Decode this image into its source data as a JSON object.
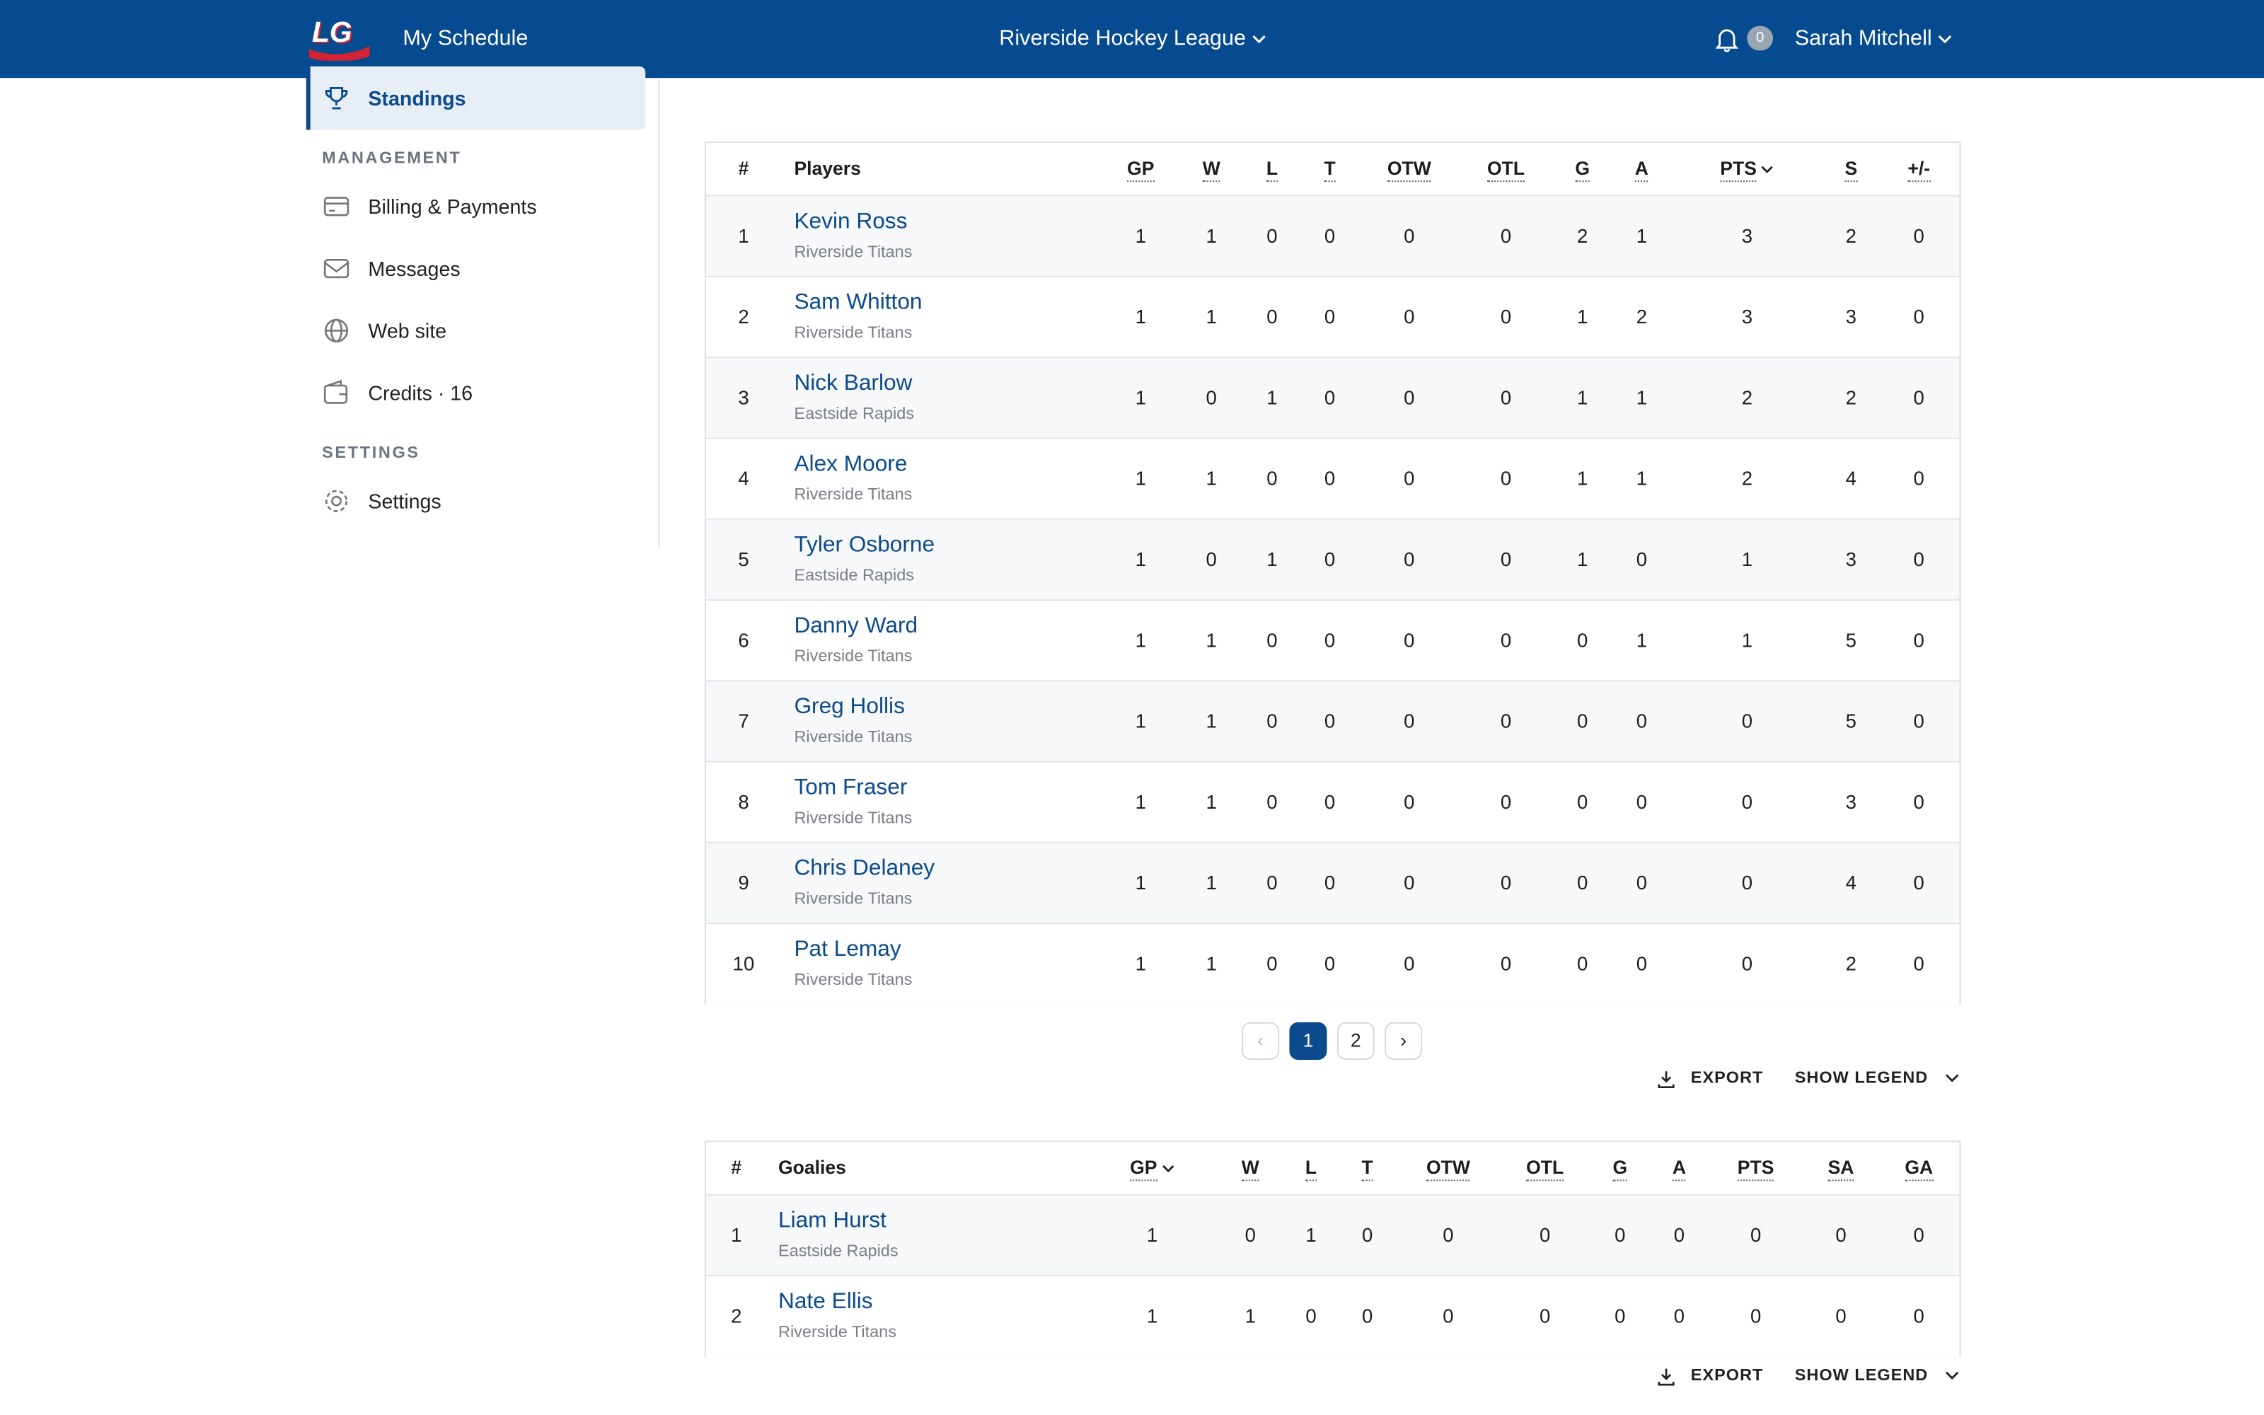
{
  "header": {
    "logo": "LG",
    "app_title": "My Schedule",
    "league": "Riverside Hockey League",
    "notifications": 0,
    "user": "Sarah Mitchell"
  },
  "sidebar": {
    "active": "Standings",
    "sections": [
      {
        "title": "MANAGEMENT",
        "items": [
          "Billing & Payments",
          "Messages",
          "Web site",
          "Credits · 16"
        ]
      },
      {
        "title": "SETTINGS",
        "items": [
          "Settings"
        ]
      }
    ]
  },
  "players": {
    "sorted_by": "PTS",
    "columns": [
      "#",
      "Players",
      "GP",
      "W",
      "L",
      "T",
      "OTW",
      "OTL",
      "G",
      "A",
      "PTS",
      "S",
      "+/-"
    ],
    "rows": [
      {
        "rank": 1,
        "name": "Kevin Ross",
        "team": "Riverside Titans",
        "stats": [
          1,
          1,
          0,
          0,
          0,
          0,
          2,
          1,
          3,
          2,
          0
        ]
      },
      {
        "rank": 2,
        "name": "Sam Whitton",
        "team": "Riverside Titans",
        "stats": [
          1,
          1,
          0,
          0,
          0,
          0,
          1,
          2,
          3,
          3,
          0
        ]
      },
      {
        "rank": 3,
        "name": "Nick Barlow",
        "team": "Eastside Rapids",
        "stats": [
          1,
          0,
          1,
          0,
          0,
          0,
          1,
          1,
          2,
          2,
          0
        ]
      },
      {
        "rank": 4,
        "name": "Alex Moore",
        "team": "Riverside Titans",
        "stats": [
          1,
          1,
          0,
          0,
          0,
          0,
          1,
          1,
          2,
          4,
          0
        ]
      },
      {
        "rank": 5,
        "name": "Tyler Osborne",
        "team": "Eastside Rapids",
        "stats": [
          1,
          0,
          1,
          0,
          0,
          0,
          1,
          0,
          1,
          3,
          0
        ]
      },
      {
        "rank": 6,
        "name": "Danny Ward",
        "team": "Riverside Titans",
        "stats": [
          1,
          1,
          0,
          0,
          0,
          0,
          0,
          1,
          1,
          5,
          0
        ]
      },
      {
        "rank": 7,
        "name": "Greg Hollis",
        "team": "Riverside Titans",
        "stats": [
          1,
          1,
          0,
          0,
          0,
          0,
          0,
          0,
          0,
          5,
          0
        ]
      },
      {
        "rank": 8,
        "name": "Tom Fraser",
        "team": "Riverside Titans",
        "stats": [
          1,
          1,
          0,
          0,
          0,
          0,
          0,
          0,
          0,
          3,
          0
        ]
      },
      {
        "rank": 9,
        "name": "Chris Delaney",
        "team": "Riverside Titans",
        "stats": [
          1,
          1,
          0,
          0,
          0,
          0,
          0,
          0,
          0,
          4,
          0
        ]
      },
      {
        "rank": 10,
        "name": "Pat Lemay",
        "team": "Riverside Titans",
        "stats": [
          1,
          1,
          0,
          0,
          0,
          0,
          0,
          0,
          0,
          2,
          0
        ]
      }
    ]
  },
  "pagination": {
    "pages": [
      1,
      2
    ],
    "current": 1
  },
  "actions": {
    "export": "EXPORT",
    "legend": "SHOW LEGEND"
  },
  "goalies": {
    "sorted_by": "GP",
    "columns": [
      "#",
      "Goalies",
      "GP",
      "W",
      "L",
      "T",
      "OTW",
      "OTL",
      "G",
      "A",
      "PTS",
      "SA",
      "GA"
    ],
    "rows": [
      {
        "rank": 1,
        "name": "Liam Hurst",
        "team": "Eastside Rapids",
        "stats": [
          1,
          0,
          1,
          0,
          0,
          0,
          0,
          0,
          0,
          0,
          0
        ]
      },
      {
        "rank": 2,
        "name": "Nate Ellis",
        "team": "Riverside Titans",
        "stats": [
          1,
          1,
          0,
          0,
          0,
          0,
          0,
          0,
          0,
          0,
          0
        ]
      }
    ]
  }
}
